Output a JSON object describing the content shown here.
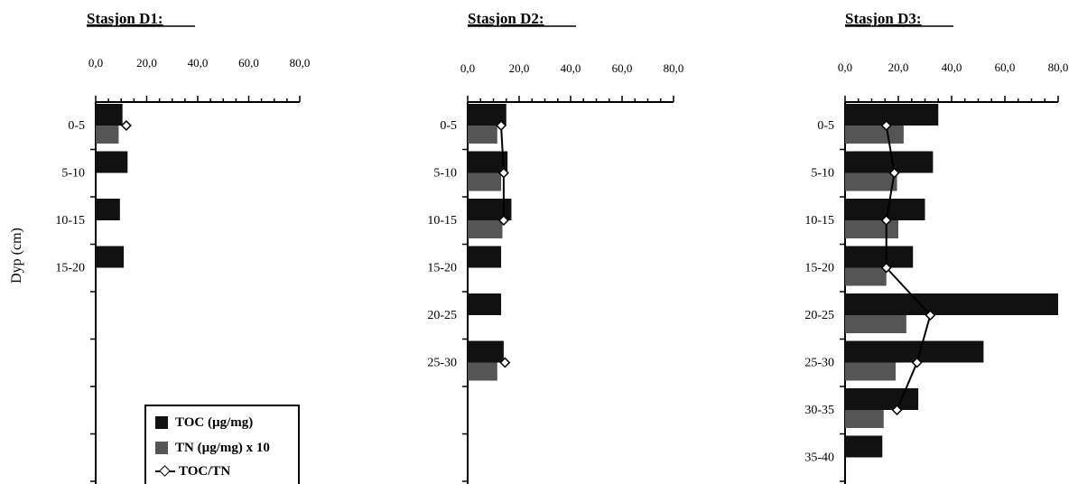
{
  "chart_data": [
    {
      "type": "bar",
      "title": "Stasjon D1:",
      "ylabel": "Dyp (cm)",
      "xlim": [
        0,
        80
      ],
      "x_ticks": [
        "0,0",
        "20,0",
        "40,0",
        "60,0",
        "80,0"
      ],
      "categories": [
        "0-5",
        "5-10",
        "10-15",
        "15-20"
      ],
      "series": [
        {
          "name": "TOC (µg/mg)",
          "values": [
            10.5,
            12.5,
            9.5,
            11.0
          ]
        },
        {
          "name": "TN (µg/mg) x 10",
          "values": [
            9.0,
            null,
            null,
            null
          ]
        },
        {
          "name": "TOC/TN",
          "values": [
            12.0,
            null,
            null,
            null
          ]
        }
      ]
    },
    {
      "type": "bar",
      "title": "Stasjon D2:",
      "xlim": [
        0,
        80
      ],
      "x_ticks": [
        "0,0",
        "20,0",
        "40,0",
        "60,0",
        "80,0"
      ],
      "categories": [
        "0-5",
        "5-10",
        "10-15",
        "15-20",
        "20-25",
        "25-30"
      ],
      "series": [
        {
          "name": "TOC (µg/mg)",
          "values": [
            15.0,
            15.5,
            17.0,
            13.0,
            13.0,
            14.0
          ]
        },
        {
          "name": "TN (µg/mg) x 10",
          "values": [
            11.5,
            13.0,
            13.5,
            null,
            null,
            11.5
          ]
        },
        {
          "name": "TOC/TN",
          "values": [
            13.0,
            14.0,
            14.0,
            null,
            null,
            14.5
          ]
        }
      ]
    },
    {
      "type": "bar",
      "title": "Stasjon D3:",
      "xlim": [
        0,
        80
      ],
      "x_ticks": [
        "0,0",
        "20,0",
        "40,0",
        "60,0",
        "80,0"
      ],
      "categories": [
        "0-5",
        "5-10",
        "10-15",
        "15-20",
        "20-25",
        "25-30",
        "30-35",
        "35-40"
      ],
      "series": [
        {
          "name": "TOC (µg/mg)",
          "values": [
            35.0,
            33.0,
            30.0,
            25.5,
            80.0,
            52.0,
            27.5,
            14.0
          ]
        },
        {
          "name": "TN (µg/mg) x 10",
          "values": [
            22.0,
            19.5,
            20.0,
            15.5,
            23.0,
            19.0,
            14.5,
            null
          ]
        },
        {
          "name": "TOC/TN",
          "values": [
            15.5,
            18.5,
            15.5,
            15.5,
            32.0,
            27.0,
            19.5,
            null
          ]
        }
      ]
    }
  ],
  "legend": {
    "toc": "TOC (µg/mg)",
    "tn": "TN (µg/mg) x 10",
    "ratio": "TOC/TN"
  },
  "colors": {
    "toc": "#111111",
    "tn": "#555555",
    "ratio_line": "#000000",
    "ratio_marker_fill": "#ffffff"
  }
}
